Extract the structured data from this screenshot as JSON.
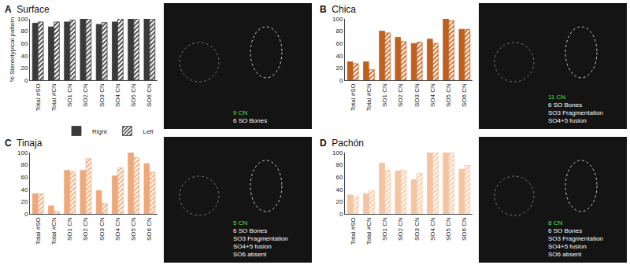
{
  "chart_data": [
    {
      "type": "bar",
      "label": "A",
      "title": "Surface",
      "ylabel": "% Stereotypical pattern",
      "categories": [
        "Total #SO",
        "Total #CN",
        "SO1 CN",
        "SO2 CN",
        "SO3 CN",
        "SO4 CN",
        "SO5 CN",
        "SO6 CN"
      ],
      "series": [
        {
          "name": "Right",
          "color": "#3a3a3a",
          "marker": "solid",
          "values": [
            93,
            87,
            95,
            100,
            91,
            95,
            100,
            100
          ]
        },
        {
          "name": "Left",
          "color": "#3a3a3a",
          "marker": "hatch",
          "values": [
            95,
            95,
            98,
            100,
            94,
            100,
            100,
            100
          ]
        }
      ],
      "ylim": [
        0,
        100
      ],
      "yticks": [
        0,
        20,
        40,
        60,
        80,
        100
      ],
      "grid": false,
      "legend": "bottom",
      "annotations": [
        "9 CN",
        "6 SO Bones"
      ]
    },
    {
      "type": "bar",
      "label": "B",
      "title": "Chica",
      "categories": [
        "Total #SO",
        "Total #CN",
        "SO1 CN",
        "SO2 CN",
        "SO3 CN",
        "SO4 CN",
        "SO5 CN",
        "SO6 CN"
      ],
      "series": [
        {
          "name": "Right",
          "color": "#c0601e",
          "marker": "solid",
          "values": [
            30,
            30,
            80,
            70,
            60,
            67,
            100,
            83
          ]
        },
        {
          "name": "Left",
          "color": "#c0601e",
          "marker": "hatch",
          "values": [
            27,
            17,
            77,
            63,
            62,
            60,
            97,
            83
          ]
        }
      ],
      "ylim": [
        0,
        100
      ],
      "yticks": [
        0,
        20,
        40,
        60,
        80,
        100
      ],
      "grid": false,
      "annotations": [
        "11 CN",
        "6 SO Bones",
        "SO3 Fragmentation",
        "SO4+5 fusion"
      ]
    },
    {
      "type": "bar",
      "label": "C",
      "title": "Tinaja",
      "categories": [
        "Total #SO",
        "Total #CN",
        "SO1 CN",
        "SO2 CN",
        "SO3 CN",
        "SO4 CN",
        "SO5 CN",
        "SO6 CN"
      ],
      "series": [
        {
          "name": "Right",
          "color": "#f0a878",
          "marker": "solid",
          "values": [
            33,
            13,
            71,
            71,
            38,
            62,
            100,
            82
          ]
        },
        {
          "name": "Left",
          "color": "#f0a878",
          "marker": "hatch",
          "values": [
            33,
            4,
            69,
            90,
            17,
            75,
            92,
            68
          ]
        }
      ],
      "ylim": [
        0,
        100
      ],
      "yticks": [
        0,
        20,
        40,
        60,
        80,
        100
      ],
      "grid": false,
      "annotations": [
        "5 CN",
        "6 SO Bones",
        "SO3 Fragmentation",
        "SO4+5 fusion",
        "SO6 absent"
      ]
    },
    {
      "type": "bar",
      "label": "D",
      "title": "Pachón",
      "categories": [
        "Total #SO",
        "Total #CN",
        "SO1 CN",
        "SO2 CN",
        "SO3 CN",
        "SO4 CN",
        "SO5 CN",
        "SO6 CN"
      ],
      "series": [
        {
          "name": "Right",
          "color": "#f6c4a0",
          "marker": "solid",
          "values": [
            31,
            33,
            83,
            70,
            56,
            100,
            100,
            73
          ]
        },
        {
          "name": "Left",
          "color": "#f6c4a0",
          "marker": "hatch",
          "values": [
            28,
            38,
            71,
            71,
            66,
            100,
            100,
            79
          ]
        }
      ],
      "ylim": [
        0,
        100
      ],
      "yticks": [
        0,
        20,
        40,
        60,
        80,
        100
      ],
      "grid": false,
      "annotations": [
        "8 CN",
        "6 SO Bones",
        "SO3 Fragmentation",
        "SO4+5 fusion",
        "SO6 absent"
      ]
    }
  ]
}
